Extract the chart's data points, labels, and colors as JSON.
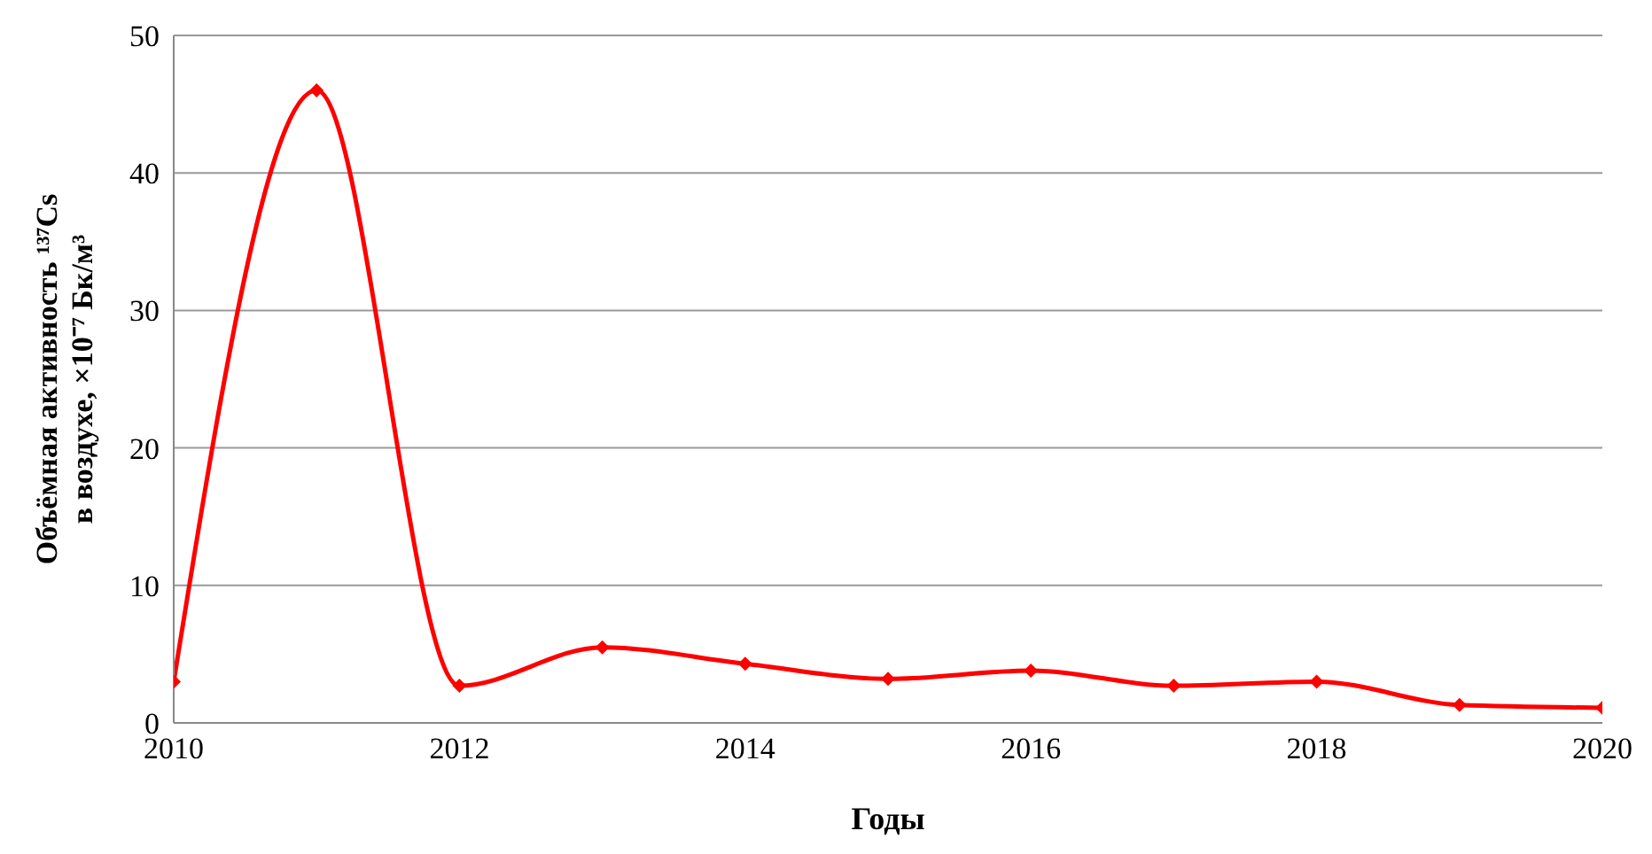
{
  "chart_data": {
    "type": "line",
    "xlabel": "Годы",
    "ylabel": [
      "Объёмная активность ¹³⁷Cs",
      "в воздухе, ×10⁻⁷ Бк/м³"
    ],
    "x": [
      2010,
      2011,
      2012,
      2013,
      2014,
      2015,
      2016,
      2017,
      2018,
      2019,
      2020
    ],
    "series": [
      {
        "color": "#ff0000",
        "values": [
          3,
          46,
          2.7,
          5.5,
          4.3,
          3.2,
          3.8,
          2.7,
          3.0,
          1.3,
          1.1
        ]
      }
    ],
    "xlim": [
      2010,
      2020
    ],
    "xticks": [
      2010,
      2012,
      2014,
      2016,
      2018,
      2020
    ],
    "ylim": [
      0,
      50
    ],
    "yticks": [
      0,
      10,
      20,
      30,
      40,
      50
    ],
    "grid": "y",
    "marker": "diamond",
    "line_style": "solid"
  }
}
